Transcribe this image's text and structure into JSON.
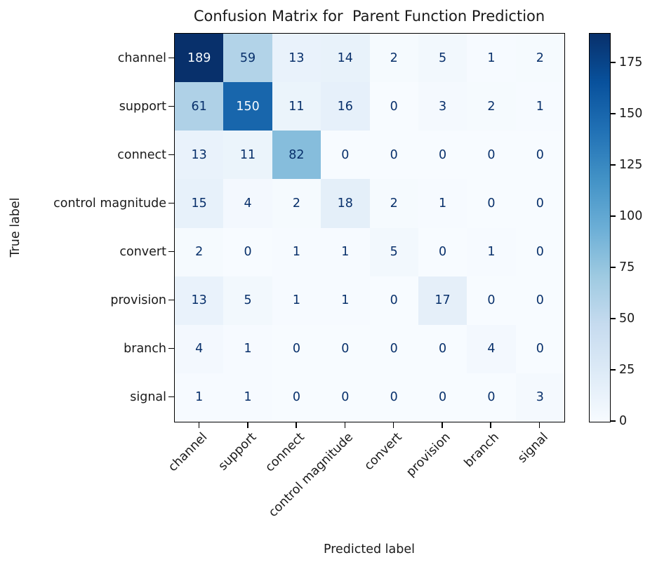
{
  "chart_data": {
    "type": "heatmap",
    "title": "Confusion Matrix for  Parent Function Prediction",
    "xlabel": "Predicted label",
    "ylabel": "True label",
    "x_categories": [
      "channel",
      "support",
      "connect",
      "control magnitude",
      "convert",
      "provision",
      "branch",
      "signal"
    ],
    "y_categories": [
      "channel",
      "support",
      "connect",
      "control magnitude",
      "convert",
      "provision",
      "branch",
      "signal"
    ],
    "matrix": [
      [
        189,
        59,
        13,
        14,
        2,
        5,
        1,
        2
      ],
      [
        61,
        150,
        11,
        16,
        0,
        3,
        2,
        1
      ],
      [
        13,
        11,
        82,
        0,
        0,
        0,
        0,
        0
      ],
      [
        15,
        4,
        2,
        18,
        2,
        1,
        0,
        0
      ],
      [
        2,
        0,
        1,
        1,
        5,
        0,
        1,
        0
      ],
      [
        13,
        5,
        1,
        1,
        0,
        17,
        0,
        0
      ],
      [
        4,
        1,
        0,
        0,
        0,
        0,
        4,
        0
      ],
      [
        1,
        1,
        0,
        0,
        0,
        0,
        0,
        3
      ]
    ],
    "vmin": 0,
    "vmax": 189,
    "colormap": "Blues",
    "colormap_stops": [
      "#f7fbff",
      "#deebf7",
      "#c6dbef",
      "#9ecae1",
      "#6baed6",
      "#4292c6",
      "#2171b5",
      "#08519c",
      "#08306b"
    ],
    "cell_text_dark": "#08306b",
    "cell_text_light": "#f7fbff",
    "colorbar_ticks": [
      0,
      25,
      50,
      75,
      100,
      125,
      150,
      175
    ],
    "legend_position": "right-colorbar",
    "grid": false,
    "x_tick_rotation_deg": 45
  }
}
